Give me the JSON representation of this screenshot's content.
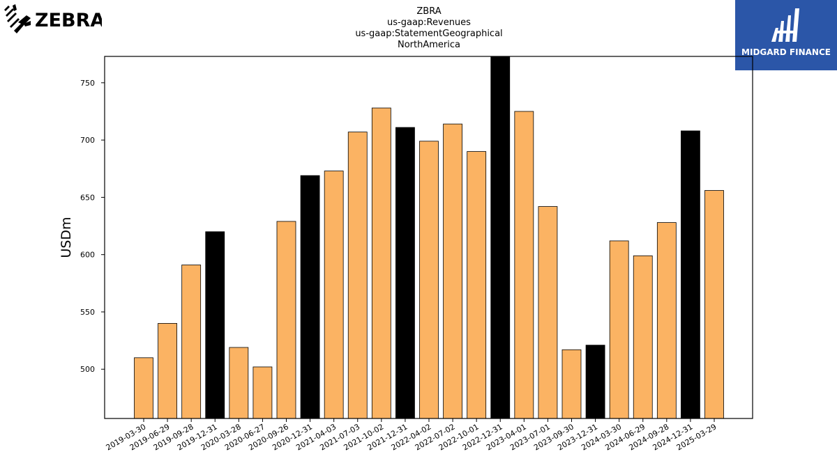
{
  "logos": {
    "left_text": "ZEBRA",
    "right_text": "MIDGARD FINANCE"
  },
  "chart_data": {
    "type": "bar",
    "title_lines": [
      "ZBRA",
      "us-gaap:Revenues",
      "us-gaap:StatementGeographical",
      "NorthAmerica"
    ],
    "xlabel": "",
    "ylabel": "USDm",
    "ylim": [
      457,
      773
    ],
    "yticks": [
      500,
      550,
      600,
      650,
      700,
      750
    ],
    "grid": false,
    "categories": [
      "2019-03-30",
      "2019-06-29",
      "2019-09-28",
      "2019-12-31",
      "2020-03-28",
      "2020-06-27",
      "2020-09-26",
      "2020-12-31",
      "2021-04-03",
      "2021-07-03",
      "2021-10-02",
      "2021-12-31",
      "2022-04-02",
      "2022-07-02",
      "2022-10-01",
      "2022-12-31",
      "2023-04-01",
      "2023-07-01",
      "2023-09-30",
      "2023-12-31",
      "2024-03-30",
      "2024-06-29",
      "2024-09-28",
      "2024-12-31",
      "2025-03-29"
    ],
    "values": [
      510,
      540,
      591,
      620,
      519,
      502,
      629,
      669,
      673,
      707,
      728,
      711,
      699,
      714,
      690,
      775,
      725,
      642,
      517,
      521,
      612,
      599,
      628,
      708,
      656
    ],
    "colors": {
      "quarter": "#fbb363",
      "year_end": "#000000"
    },
    "bar_kind": [
      "q",
      "q",
      "q",
      "y",
      "q",
      "q",
      "q",
      "y",
      "q",
      "q",
      "q",
      "y",
      "q",
      "q",
      "q",
      "y",
      "q",
      "q",
      "q",
      "y",
      "q",
      "q",
      "q",
      "y",
      "q"
    ]
  }
}
